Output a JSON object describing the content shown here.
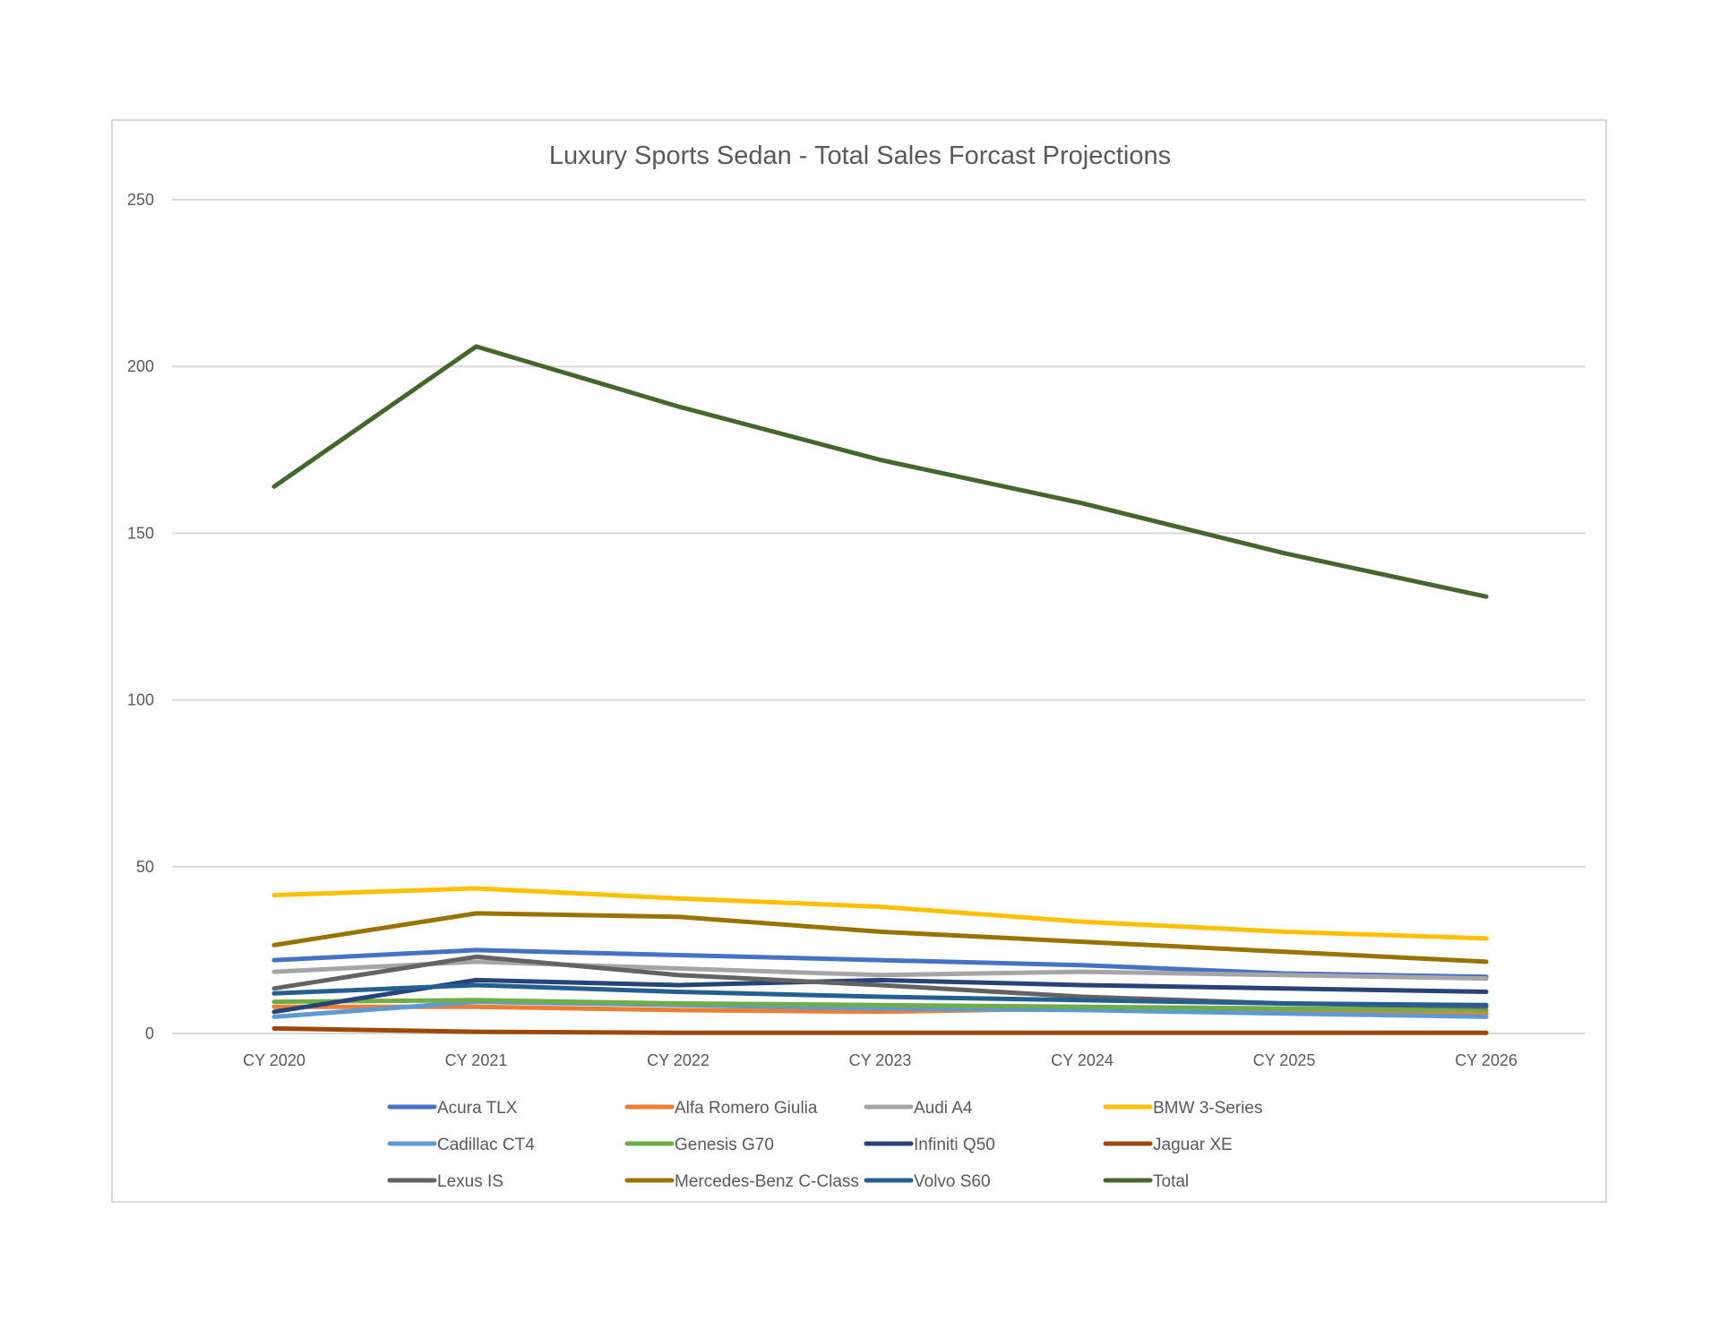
{
  "chart_data": {
    "type": "line",
    "title": "Luxury Sports Sedan - Total Sales Forcast Projections",
    "xlabel": "",
    "ylabel": "",
    "categories": [
      "CY 2020",
      "CY 2021",
      "CY 2022",
      "CY 2023",
      "CY 2024",
      "CY 2025",
      "CY 2026"
    ],
    "ylim": [
      0,
      250
    ],
    "yticks": [
      0,
      50,
      100,
      150,
      200,
      250
    ],
    "grid": true,
    "legend_position": "bottom",
    "series": [
      {
        "name": "Acura TLX",
        "color": "#4472c4",
        "values": [
          22,
          25,
          23.5,
          22,
          20.5,
          18,
          17
        ]
      },
      {
        "name": "Alfa Romero Giulia",
        "color": "#ed7d31",
        "values": [
          8,
          8,
          7,
          6.5,
          7.5,
          7,
          6
        ]
      },
      {
        "name": "Audi A4",
        "color": "#a5a5a5",
        "values": [
          18.5,
          21.5,
          19.5,
          17.5,
          18.5,
          17.5,
          16.5
        ]
      },
      {
        "name": "BMW 3-Series",
        "color": "#ffc000",
        "values": [
          41.5,
          43.5,
          40.5,
          38,
          33.5,
          30.5,
          28.5
        ]
      },
      {
        "name": "Cadillac CT4",
        "color": "#5b9bd5",
        "values": [
          5,
          9.5,
          8.5,
          7.5,
          7,
          6,
          5
        ]
      },
      {
        "name": "Genesis G70",
        "color": "#70ad47",
        "values": [
          9.5,
          10,
          9,
          8.5,
          8,
          7.5,
          7
        ]
      },
      {
        "name": "Infiniti Q50",
        "color": "#264478",
        "values": [
          6.5,
          16,
          14.5,
          16,
          14.5,
          13.5,
          12.5
        ]
      },
      {
        "name": "Jaguar XE",
        "color": "#9e480e",
        "values": [
          1.5,
          0.5,
          0.2,
          0.2,
          0.2,
          0.2,
          0.2
        ]
      },
      {
        "name": "Lexus IS",
        "color": "#636363",
        "values": [
          13.5,
          23,
          17.5,
          14.5,
          11,
          9,
          8
        ]
      },
      {
        "name": "Mercedes-Benz C-Class",
        "color": "#997300",
        "values": [
          26.5,
          36,
          35,
          30.5,
          27.5,
          24.5,
          21.5
        ]
      },
      {
        "name": "Volvo S60",
        "color": "#255e91",
        "values": [
          12,
          14.5,
          12.5,
          11,
          10,
          9,
          8.5
        ]
      },
      {
        "name": "Total",
        "color": "#43682b",
        "values": [
          164,
          206,
          188,
          172,
          159,
          144,
          131
        ]
      }
    ]
  }
}
